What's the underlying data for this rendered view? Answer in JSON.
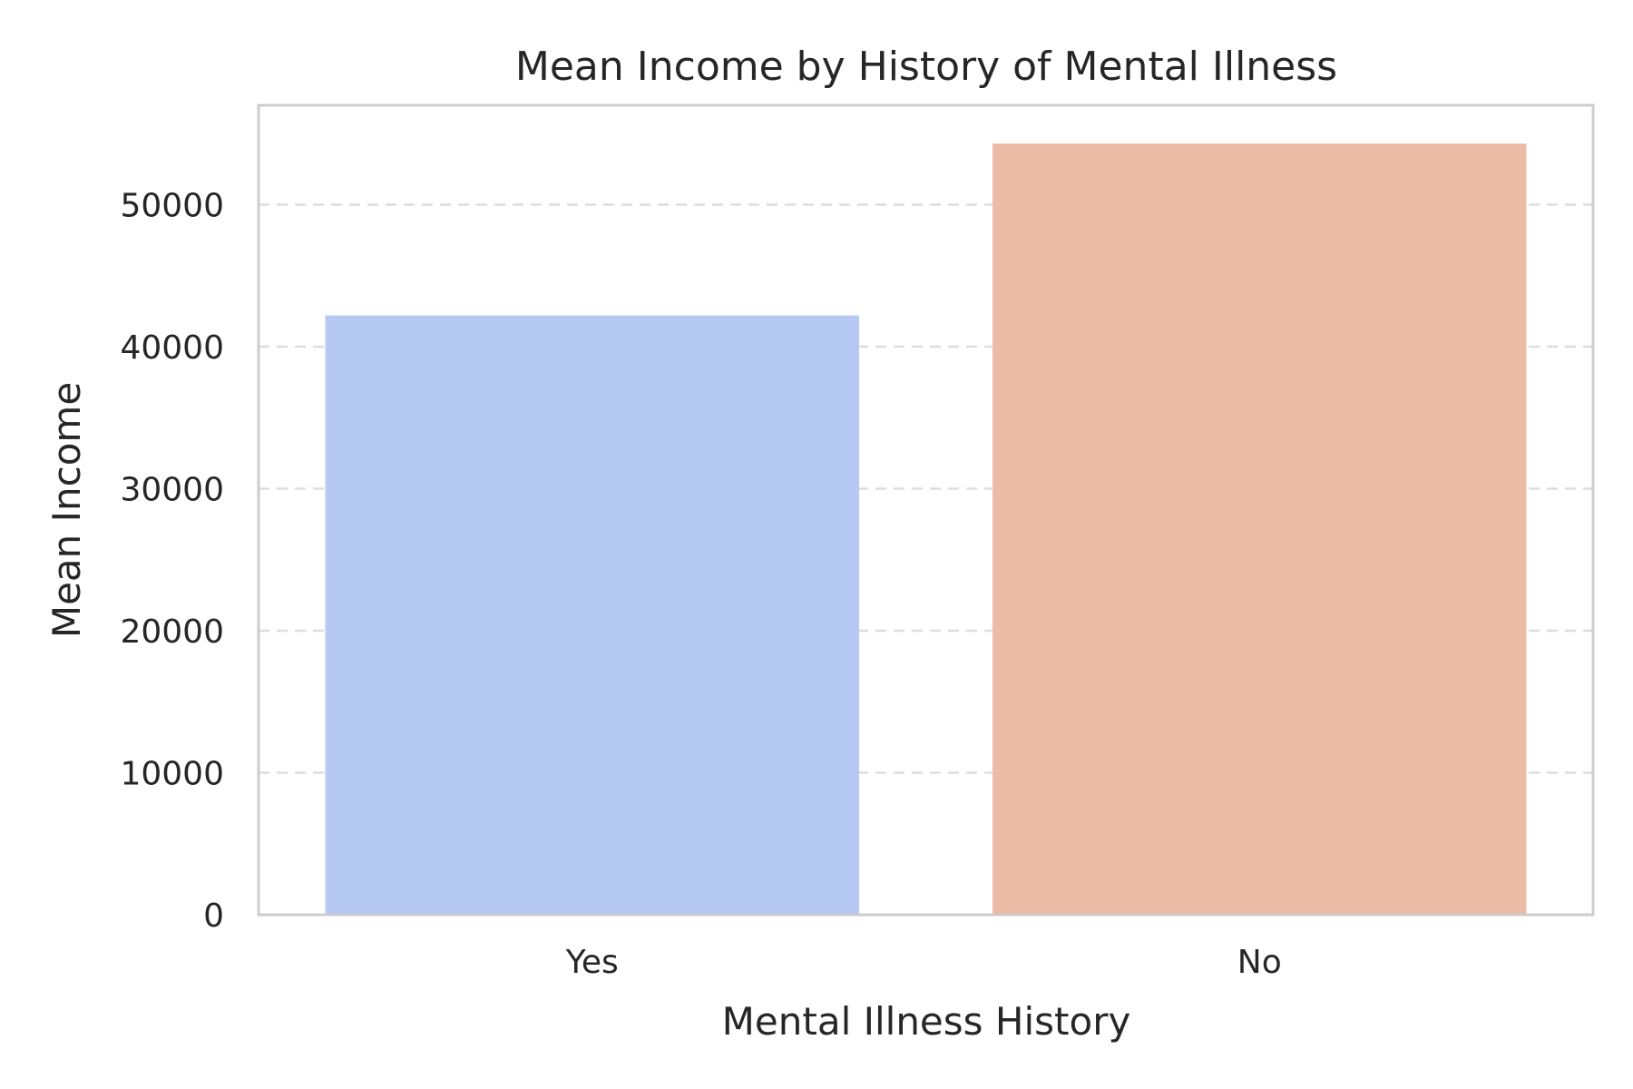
{
  "chart_data": {
    "type": "bar",
    "title": "Mean Income by History of Mental Illness",
    "xlabel": "Mental Illness History",
    "ylabel": "Mean Income",
    "categories": [
      "Yes",
      "No"
    ],
    "values": [
      42200,
      54300
    ],
    "colors": [
      "#b5c9f2",
      "#ecbba6"
    ],
    "ylim": [
      0,
      57000
    ],
    "yticks": [
      0,
      10000,
      20000,
      30000,
      40000,
      50000
    ],
    "ytick_labels": [
      "0",
      "10000",
      "20000",
      "30000",
      "40000",
      "50000"
    ],
    "grid": "y-dashed",
    "legend": "none"
  }
}
